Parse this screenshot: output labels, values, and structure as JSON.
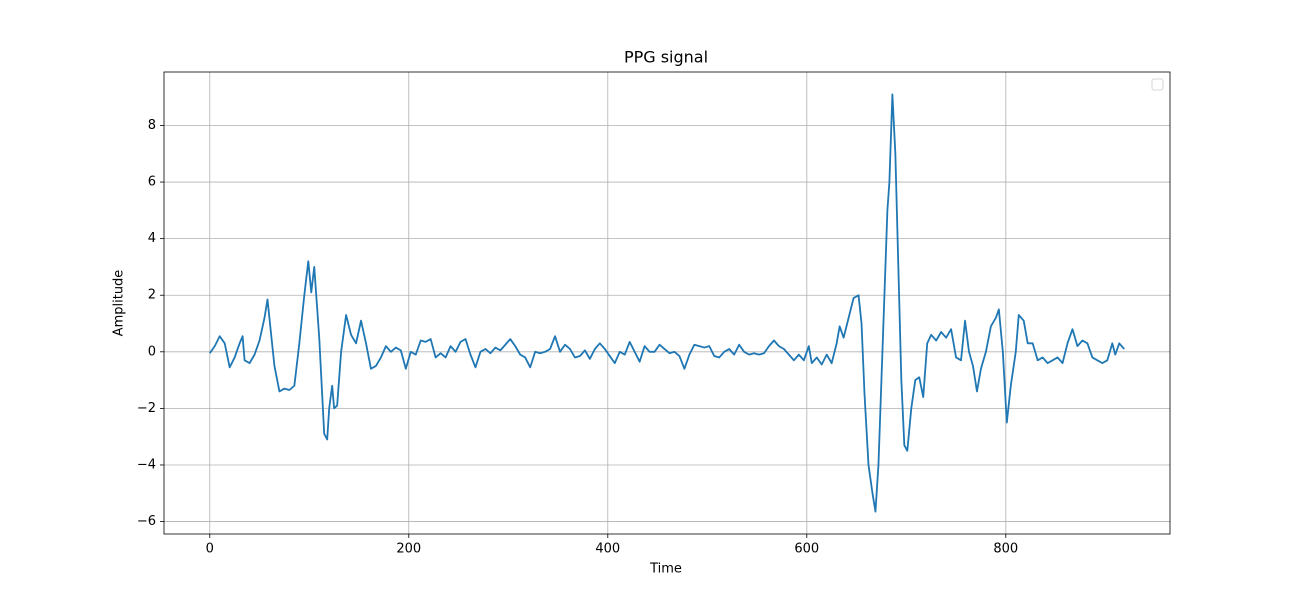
{
  "chart_data": {
    "type": "line",
    "title": "PPG signal",
    "xlabel": "Time",
    "ylabel": "Amplitude",
    "xlim": [
      -46,
      965
    ],
    "ylim": [
      -6.44,
      9.89
    ],
    "xticks": [
      0,
      200,
      400,
      600,
      800
    ],
    "yticks": [
      {
        "value": -6,
        "label": "−6"
      },
      {
        "value": -4,
        "label": "−4"
      },
      {
        "value": -2,
        "label": "−2"
      },
      0,
      2,
      4,
      6,
      8
    ],
    "grid": true,
    "legend": "upper right",
    "x": [
      0,
      5,
      10,
      15,
      20,
      25,
      30,
      33,
      35,
      40,
      45,
      50,
      55,
      58,
      62,
      65,
      70,
      75,
      80,
      85,
      90,
      95,
      99,
      102,
      105,
      110,
      115,
      118,
      120,
      123,
      125,
      128,
      132,
      137,
      142,
      147,
      152,
      157,
      162,
      167,
      172,
      177,
      182,
      187,
      192,
      197,
      202,
      207,
      212,
      217,
      222,
      227,
      232,
      237,
      242,
      247,
      252,
      257,
      262,
      267,
      272,
      277,
      282,
      287,
      292,
      297,
      302,
      307,
      312,
      317,
      322,
      327,
      332,
      337,
      342,
      347,
      352,
      357,
      362,
      367,
      372,
      377,
      382,
      387,
      392,
      397,
      402,
      407,
      412,
      417,
      422,
      427,
      432,
      437,
      442,
      447,
      452,
      457,
      462,
      467,
      472,
      477,
      482,
      487,
      492,
      497,
      502,
      507,
      512,
      517,
      522,
      527,
      532,
      537,
      542,
      547,
      552,
      557,
      562,
      567,
      572,
      577,
      582,
      587,
      592,
      597,
      602,
      605,
      610,
      615,
      620,
      625,
      630,
      633,
      637,
      642,
      647,
      652,
      655,
      658,
      662,
      666,
      669,
      672,
      675,
      678,
      681,
      683,
      686,
      689,
      692,
      695,
      698,
      701,
      705,
      709,
      713,
      717,
      721,
      725,
      730,
      735,
      740,
      745,
      750,
      755,
      759,
      763,
      767,
      771,
      775,
      780,
      785,
      790,
      793,
      797,
      801,
      805,
      810,
      813,
      818,
      822,
      827,
      832,
      837,
      842,
      847,
      852,
      857,
      862,
      867,
      872,
      877,
      882,
      887,
      892,
      897,
      902,
      907,
      910,
      914,
      919
    ],
    "series": [
      {
        "color": "#1f77b4",
        "values": [
          -0.05,
          0.2,
          0.55,
          0.3,
          -0.55,
          -0.2,
          0.3,
          0.55,
          -0.3,
          -0.4,
          -0.1,
          0.4,
          1.2,
          1.85,
          0.5,
          -0.5,
          -1.4,
          -1.3,
          -1.35,
          -1.2,
          0.3,
          2.0,
          3.2,
          2.1,
          3.0,
          0.5,
          -2.9,
          -3.1,
          -2.0,
          -1.2,
          -2.0,
          -1.9,
          0.0,
          1.3,
          0.6,
          0.3,
          1.1,
          0.3,
          -0.6,
          -0.5,
          -0.2,
          0.2,
          0.0,
          0.15,
          0.05,
          -0.6,
          0.0,
          -0.1,
          0.4,
          0.35,
          0.45,
          -0.2,
          -0.05,
          -0.2,
          0.2,
          0.0,
          0.35,
          0.45,
          -0.1,
          -0.55,
          0.0,
          0.1,
          -0.05,
          0.15,
          0.05,
          0.25,
          0.45,
          0.2,
          -0.1,
          -0.2,
          -0.55,
          0.0,
          -0.05,
          0.0,
          0.1,
          0.55,
          0.0,
          0.25,
          0.1,
          -0.2,
          -0.15,
          0.05,
          -0.25,
          0.1,
          0.3,
          0.1,
          -0.15,
          -0.4,
          0.0,
          -0.1,
          0.35,
          0.0,
          -0.35,
          0.2,
          0.0,
          0.0,
          0.25,
          0.1,
          -0.05,
          0.0,
          -0.15,
          -0.6,
          -0.1,
          0.25,
          0.2,
          0.15,
          0.2,
          -0.15,
          -0.2,
          0.0,
          0.1,
          -0.1,
          0.25,
          0.0,
          -0.1,
          -0.05,
          -0.1,
          -0.05,
          0.2,
          0.4,
          0.2,
          0.1,
          -0.1,
          -0.3,
          -0.1,
          -0.3,
          0.2,
          -0.4,
          -0.2,
          -0.45,
          -0.1,
          -0.4,
          0.3,
          0.9,
          0.5,
          1.2,
          1.9,
          2.0,
          1.0,
          -1.5,
          -4.0,
          -5.0,
          -5.65,
          -4.0,
          -1.0,
          2.0,
          5.0,
          6.0,
          9.1,
          7.0,
          3.0,
          -1.0,
          -3.3,
          -3.5,
          -2.0,
          -1.0,
          -0.9,
          -1.6,
          0.3,
          0.6,
          0.4,
          0.7,
          0.5,
          0.8,
          -0.2,
          -0.3,
          1.1,
          0.0,
          -0.5,
          -1.4,
          -0.6,
          0.0,
          0.9,
          1.2,
          1.5,
          0.0,
          -2.5,
          -1.2,
          0.0,
          1.3,
          1.1,
          0.3,
          0.3,
          -0.3,
          -0.2,
          -0.4,
          -0.3,
          -0.2,
          -0.4,
          0.3,
          0.8,
          0.2,
          0.4,
          0.3,
          -0.2,
          -0.3,
          -0.4,
          -0.3,
          0.3,
          -0.1,
          0.3,
          0.1
        ]
      }
    ]
  }
}
